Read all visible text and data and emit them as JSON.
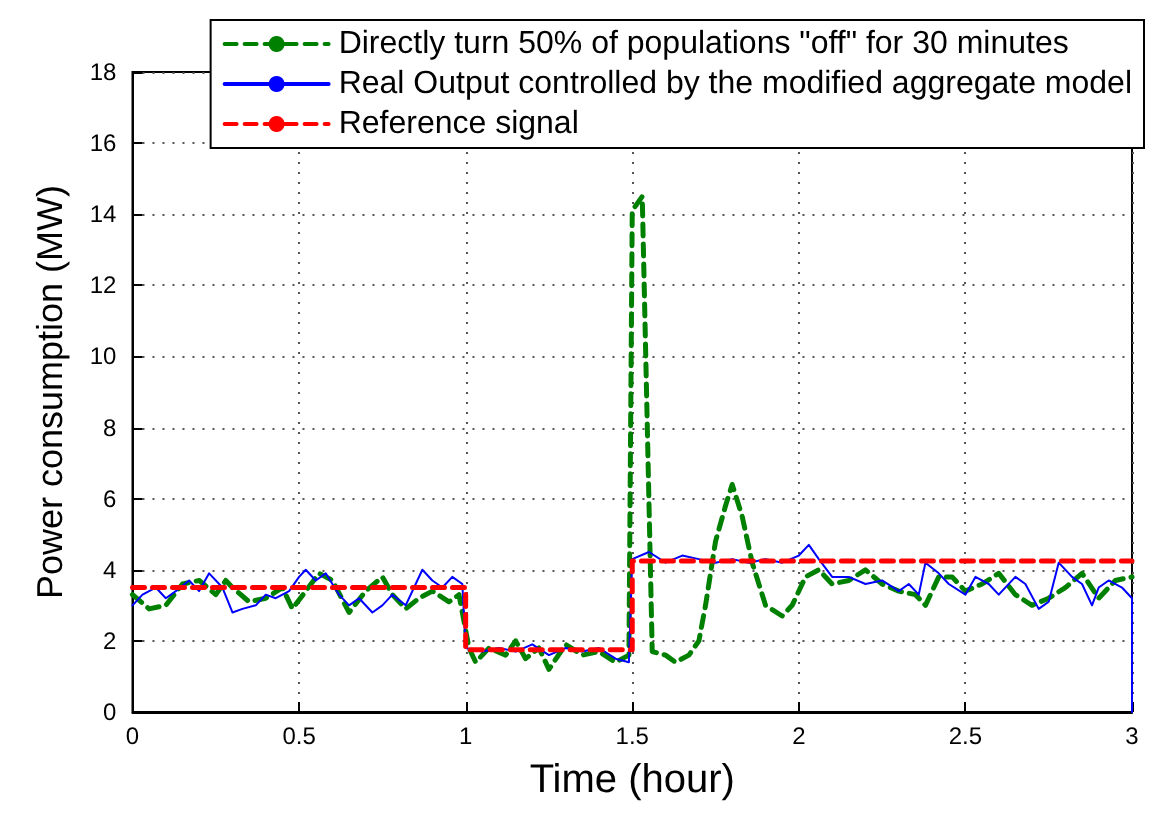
{
  "chart_data": {
    "type": "line",
    "xlabel": "Time (hour)",
    "ylabel": "Power consumption (MW)",
    "xlim": [
      0,
      3
    ],
    "xticks": [
      0,
      0.5,
      1,
      1.5,
      2,
      2.5,
      3
    ],
    "ylim": [
      0,
      18
    ],
    "yticks": [
      0,
      2,
      4,
      6,
      8,
      10,
      12,
      14,
      16,
      18
    ],
    "grid": true,
    "legend": "top right",
    "marker": "none",
    "series": [
      {
        "name": "Directly turn 50% of populations \"off\" for 30 minutes",
        "color": "#008000",
        "line_style": "dashed",
        "x": [
          0,
          0.05,
          0.1,
          0.15,
          0.2,
          0.25,
          0.28,
          0.3,
          0.35,
          0.4,
          0.45,
          0.48,
          0.52,
          0.56,
          0.6,
          0.65,
          0.7,
          0.75,
          0.78,
          0.82,
          0.86,
          0.9,
          0.95,
          0.98,
          1.01,
          1.03,
          1.07,
          1.12,
          1.15,
          1.18,
          1.22,
          1.25,
          1.3,
          1.35,
          1.4,
          1.45,
          1.49,
          1.5,
          1.53,
          1.56,
          1.6,
          1.63,
          1.67,
          1.7,
          1.72,
          1.75,
          1.78,
          1.8,
          1.83,
          1.86,
          1.9,
          1.95,
          1.98,
          2.02,
          2.06,
          2.1,
          2.15,
          2.2,
          2.25,
          2.3,
          2.35,
          2.38,
          2.42,
          2.46,
          2.5,
          2.55,
          2.6,
          2.65,
          2.7,
          2.75,
          2.8,
          2.85,
          2.9,
          2.95,
          3.0
        ],
        "values": [
          3.3,
          2.9,
          3.0,
          3.6,
          3.7,
          3.3,
          3.7,
          3.5,
          3.1,
          3.2,
          3.5,
          2.9,
          3.4,
          3.9,
          3.7,
          2.8,
          3.4,
          3.8,
          3.3,
          2.9,
          3.2,
          3.4,
          3.1,
          3.3,
          1.8,
          1.4,
          1.8,
          1.6,
          2.0,
          1.5,
          1.8,
          1.2,
          1.9,
          1.6,
          1.7,
          1.4,
          1.6,
          14.1,
          14.5,
          1.7,
          1.6,
          1.4,
          1.6,
          2.0,
          3.0,
          4.8,
          5.8,
          6.4,
          5.5,
          4.2,
          3.0,
          2.7,
          3.0,
          3.8,
          4.0,
          3.6,
          3.7,
          4.0,
          3.6,
          3.4,
          3.3,
          3.0,
          3.8,
          3.8,
          3.4,
          3.6,
          3.9,
          3.3,
          3.0,
          3.2,
          3.5,
          3.9,
          3.2,
          3.7,
          3.8
        ]
      },
      {
        "name": "Real Output controlled by the modified aggregate model",
        "color": "#0000ff",
        "line_style": "solid",
        "x": [
          0,
          0.03,
          0.07,
          0.1,
          0.13,
          0.17,
          0.2,
          0.23,
          0.27,
          0.3,
          0.33,
          0.37,
          0.4,
          0.43,
          0.47,
          0.5,
          0.52,
          0.55,
          0.58,
          0.62,
          0.65,
          0.68,
          0.72,
          0.75,
          0.78,
          0.82,
          0.85,
          0.87,
          0.9,
          0.93,
          0.96,
          0.99,
          1.0,
          1.05,
          1.1,
          1.15,
          1.2,
          1.25,
          1.3,
          1.35,
          1.4,
          1.45,
          1.49,
          1.5,
          1.55,
          1.6,
          1.65,
          1.7,
          1.75,
          1.8,
          1.85,
          1.9,
          1.95,
          2.0,
          2.03,
          2.06,
          2.1,
          2.15,
          2.2,
          2.25,
          2.3,
          2.33,
          2.36,
          2.38,
          2.42,
          2.45,
          2.5,
          2.53,
          2.57,
          2.6,
          2.65,
          2.68,
          2.72,
          2.75,
          2.78,
          2.82,
          2.85,
          2.88,
          2.9,
          2.93,
          2.97,
          3.0,
          3.0
        ],
        "values": [
          3.0,
          3.3,
          3.5,
          3.2,
          3.4,
          3.7,
          3.4,
          3.9,
          3.5,
          2.8,
          2.9,
          3.0,
          3.3,
          3.2,
          3.4,
          3.8,
          4.0,
          3.7,
          3.9,
          3.3,
          3.0,
          3.2,
          2.8,
          3.0,
          3.3,
          3.0,
          3.6,
          4.0,
          3.7,
          3.5,
          3.8,
          3.6,
          1.8,
          1.7,
          1.8,
          1.7,
          1.9,
          1.6,
          1.8,
          1.7,
          1.8,
          1.5,
          1.4,
          4.3,
          4.5,
          4.2,
          4.4,
          4.3,
          4.2,
          4.3,
          4.2,
          4.3,
          4.2,
          4.4,
          4.7,
          4.3,
          3.8,
          3.8,
          3.6,
          3.7,
          3.4,
          3.6,
          3.3,
          4.2,
          3.9,
          3.6,
          3.3,
          3.8,
          3.6,
          3.3,
          3.8,
          3.6,
          2.9,
          3.1,
          4.2,
          3.8,
          3.6,
          3.0,
          3.5,
          3.7,
          3.5,
          3.2,
          0
        ]
      },
      {
        "name": "Reference signal",
        "color": "#ff0000",
        "line_style": "dashed",
        "x": [
          0,
          1,
          1,
          1.5,
          1.5,
          3
        ],
        "values": [
          3.5,
          3.5,
          1.75,
          1.75,
          4.25,
          4.25
        ]
      }
    ]
  }
}
